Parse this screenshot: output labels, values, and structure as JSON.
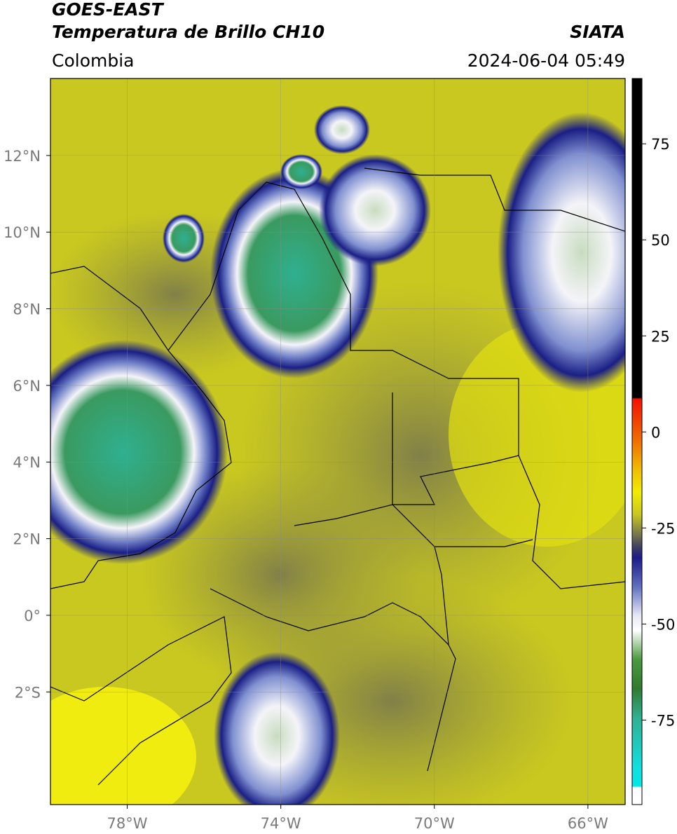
{
  "header": {
    "title": "GOES-EAST",
    "subtitle": "Temperatura de Brillo CH10",
    "source": "SIATA",
    "region": "Colombia",
    "datetime": "2024-06-04 05:49"
  },
  "map": {
    "xlim": [
      -80,
      -65.03
    ],
    "ylim": [
      -4.94,
      14.01
    ],
    "xticks": [
      {
        "value": -78,
        "label": "78°W"
      },
      {
        "value": -74,
        "label": "74°W"
      },
      {
        "value": -70,
        "label": "70°W"
      },
      {
        "value": -66,
        "label": "66°W"
      }
    ],
    "yticks": [
      {
        "value": 12,
        "label": "12°N"
      },
      {
        "value": 10,
        "label": "10°N"
      },
      {
        "value": 8,
        "label": "8°N"
      },
      {
        "value": 6,
        "label": "6°N"
      },
      {
        "value": 4,
        "label": "4°N"
      },
      {
        "value": 2,
        "label": "2°N"
      },
      {
        "value": 0,
        "label": "0°"
      },
      {
        "value": -2,
        "label": "2°S"
      }
    ],
    "grid": true
  },
  "colorbar": {
    "lim": [
      -97,
      92
    ],
    "ticks": [
      75,
      50,
      25,
      0,
      -25,
      -50,
      -75
    ]
  }
}
